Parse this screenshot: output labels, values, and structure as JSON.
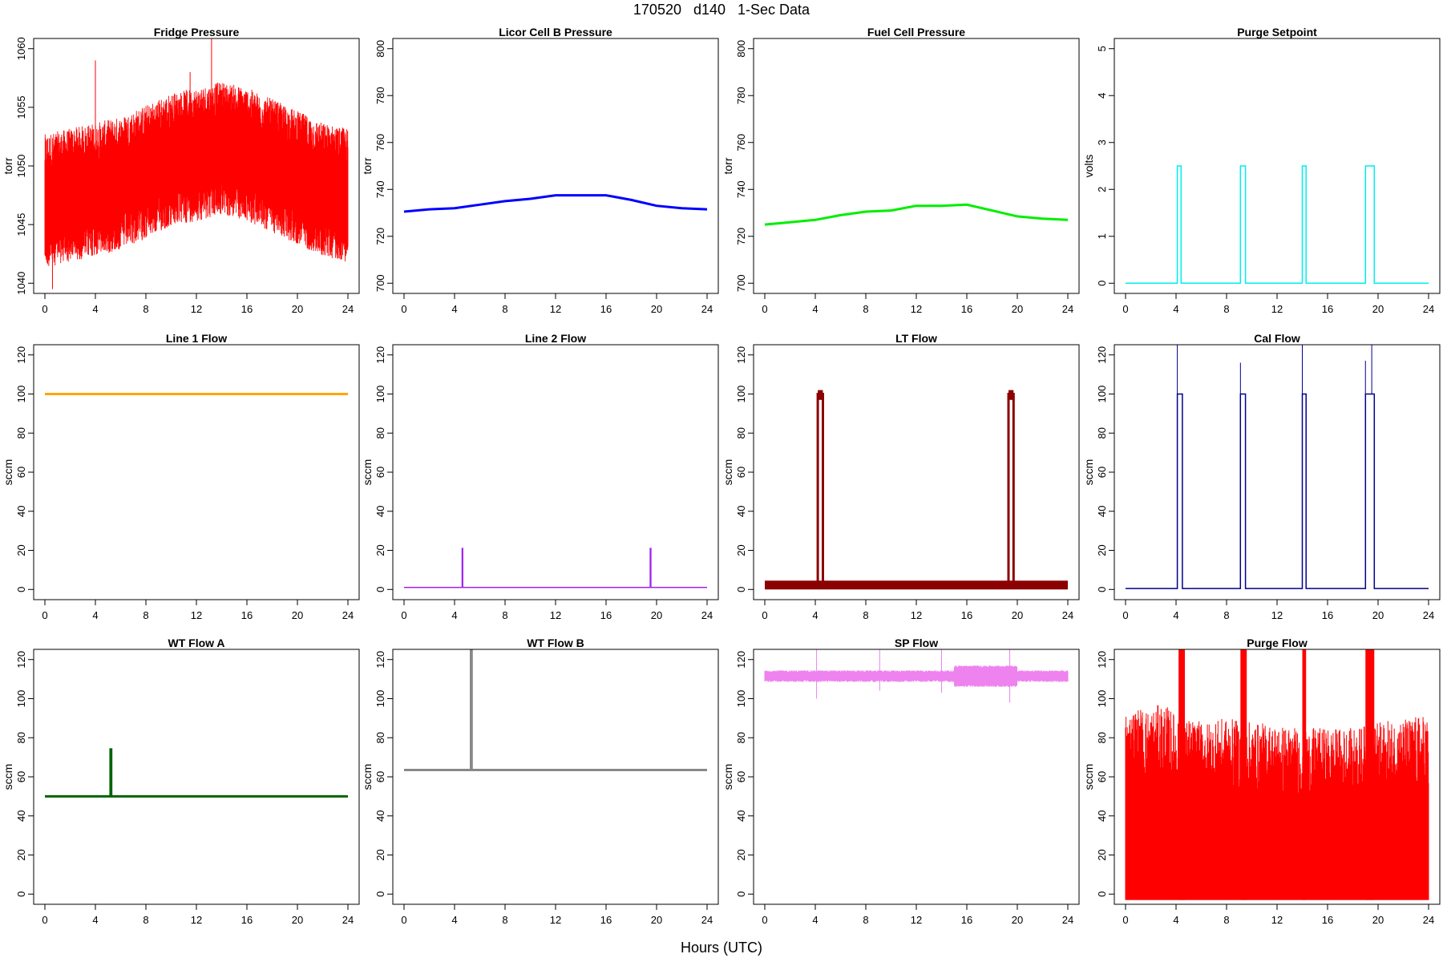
{
  "page": {
    "title": "170520   d140   1-Sec Data",
    "xlabel": "Hours (UTC)"
  },
  "chart_data": [
    {
      "type": "line",
      "title": "Fridge Pressure",
      "ylabel": "torr",
      "color": "#ff0000",
      "xlim": [
        0,
        24
      ],
      "ylim": [
        1040,
        1060
      ],
      "xticks": [
        0,
        4,
        8,
        12,
        16,
        20,
        24
      ],
      "yticks": [
        1040,
        1045,
        1050,
        1055,
        1060
      ],
      "series": [
        {
          "x": [
            0,
            2,
            4,
            6,
            8,
            10,
            12,
            14,
            16,
            18,
            20,
            22,
            24
          ],
          "y": [
            1047,
            1047.5,
            1048,
            1048.5,
            1049.5,
            1050.5,
            1051,
            1051.5,
            1051,
            1050,
            1049,
            1048,
            1047.5
          ]
        }
      ],
      "spikes": [
        [
          4.0,
          1059
        ],
        [
          13.2,
          1061
        ],
        [
          11.5,
          1058
        ],
        [
          0.6,
          1039.5
        ]
      ]
    },
    {
      "type": "line",
      "title": "Licor Cell B Pressure",
      "ylabel": "torr",
      "color": "#0000ff",
      "xlim": [
        0,
        24
      ],
      "ylim": [
        700,
        800
      ],
      "xticks": [
        0,
        4,
        8,
        12,
        16,
        20,
        24
      ],
      "yticks": [
        700,
        720,
        740,
        760,
        780,
        800
      ],
      "series": [
        {
          "x": [
            0,
            2,
            4,
            6,
            8,
            10,
            12,
            14,
            16,
            18,
            20,
            22,
            24
          ],
          "y": [
            730.5,
            731.5,
            732,
            733.5,
            735,
            736,
            737.5,
            737.5,
            737.5,
            735.5,
            733,
            732,
            731.5
          ]
        }
      ]
    },
    {
      "type": "line",
      "title": "Fuel Cell Pressure",
      "ylabel": "torr",
      "color": "#00ee00",
      "xlim": [
        0,
        24
      ],
      "ylim": [
        700,
        800
      ],
      "xticks": [
        0,
        4,
        8,
        12,
        16,
        20,
        24
      ],
      "yticks": [
        700,
        720,
        740,
        760,
        780,
        800
      ],
      "series": [
        {
          "x": [
            0,
            2,
            4,
            6,
            8,
            10,
            12,
            14,
            16,
            18,
            20,
            22,
            24
          ],
          "y": [
            725,
            726,
            727,
            729,
            730.5,
            731,
            733,
            733,
            733.5,
            731,
            728.5,
            727.5,
            727
          ]
        }
      ]
    },
    {
      "type": "line",
      "title": "Purge Setpoint",
      "ylabel": "volts",
      "color": "#00eeee",
      "xlim": [
        0,
        24
      ],
      "ylim": [
        0,
        5
      ],
      "xticks": [
        0,
        4,
        8,
        12,
        16,
        20,
        24
      ],
      "yticks": [
        0,
        1,
        2,
        3,
        4,
        5
      ],
      "series": [
        {
          "x": [
            0,
            4.1,
            4.1,
            4.4,
            4.4,
            9.1,
            9.1,
            9.5,
            9.5,
            14.0,
            14.0,
            14.3,
            14.3,
            19.0,
            19.0,
            19.7,
            19.7,
            24
          ],
          "y": [
            0,
            0,
            2.5,
            2.5,
            0,
            0,
            2.5,
            2.5,
            0,
            0,
            2.5,
            2.5,
            0,
            0,
            2.5,
            2.5,
            0,
            0
          ]
        }
      ]
    },
    {
      "type": "line",
      "title": "Line 1 Flow",
      "ylabel": "sccm",
      "color": "#ffa500",
      "xlim": [
        0,
        24
      ],
      "ylim": [
        0,
        120
      ],
      "xticks": [
        0,
        4,
        8,
        12,
        16,
        20,
        24
      ],
      "yticks": [
        0,
        20,
        40,
        60,
        80,
        100,
        120
      ],
      "series": [
        {
          "x": [
            0,
            4,
            8,
            12,
            16,
            20,
            24
          ],
          "y": [
            100,
            100,
            100,
            100,
            100,
            100,
            100
          ]
        }
      ]
    },
    {
      "type": "line",
      "title": "Line 2 Flow",
      "ylabel": "sccm",
      "color": "#a020f0",
      "xlim": [
        0,
        24
      ],
      "ylim": [
        0,
        120
      ],
      "xticks": [
        0,
        4,
        8,
        12,
        16,
        20,
        24
      ],
      "yticks": [
        0,
        20,
        40,
        60,
        80,
        100,
        120
      ],
      "series": [
        {
          "x": [
            0,
            4.6,
            4.6,
            4.65,
            4.65,
            19.5,
            19.5,
            19.55,
            19.55,
            24
          ],
          "y": [
            1,
            1,
            21,
            21,
            1,
            1,
            21,
            21,
            1,
            1
          ]
        }
      ]
    },
    {
      "type": "line",
      "title": "LT Flow",
      "ylabel": "sccm",
      "color": "#8b0000",
      "xlim": [
        0,
        24
      ],
      "ylim": [
        0,
        120
      ],
      "xticks": [
        0,
        4,
        8,
        12,
        16,
        20,
        24
      ],
      "yticks": [
        0,
        20,
        40,
        60,
        80,
        100,
        120
      ],
      "series": [
        {
          "x": [
            0,
            4.2,
            4.2,
            4.6,
            4.6,
            19.3,
            19.3,
            19.7,
            19.7,
            24
          ],
          "y": [
            2,
            2,
            100,
            100,
            2,
            2,
            100,
            100,
            2,
            2
          ]
        }
      ]
    },
    {
      "type": "line",
      "title": "Cal Flow",
      "ylabel": "sccm",
      "color": "#00008b",
      "xlim": [
        0,
        24
      ],
      "ylim": [
        0,
        120
      ],
      "xticks": [
        0,
        4,
        8,
        12,
        16,
        20,
        24
      ],
      "yticks": [
        0,
        20,
        40,
        60,
        80,
        100,
        120
      ],
      "series": [
        {
          "x": [
            0,
            4.1,
            4.1,
            4.5,
            4.5,
            9.1,
            9.1,
            9.5,
            9.5,
            14.0,
            14.0,
            14.3,
            14.3,
            19.0,
            19.0,
            19.7,
            19.7,
            24
          ],
          "y": [
            0.5,
            0.5,
            100,
            100,
            0.5,
            0.5,
            100,
            100,
            0.5,
            0.5,
            100,
            100,
            0.5,
            0.5,
            100,
            100,
            0.5,
            0.5
          ]
        }
      ],
      "spikes": [
        [
          4.1,
          129
        ],
        [
          9.1,
          116
        ],
        [
          14.0,
          128
        ],
        [
          19.0,
          117
        ],
        [
          19.5,
          130
        ]
      ]
    },
    {
      "type": "line",
      "title": "WT Flow A",
      "ylabel": "sccm",
      "color": "#006400",
      "xlim": [
        0,
        24
      ],
      "ylim": [
        0,
        120
      ],
      "xticks": [
        0,
        4,
        8,
        12,
        16,
        20,
        24
      ],
      "yticks": [
        0,
        20,
        40,
        60,
        80,
        100,
        120
      ],
      "series": [
        {
          "x": [
            0,
            5.2,
            5.2,
            5.25,
            5.25,
            24
          ],
          "y": [
            50,
            50,
            74,
            74,
            50,
            50
          ]
        }
      ]
    },
    {
      "type": "line",
      "title": "WT Flow B",
      "ylabel": "sccm",
      "color": "#888888",
      "xlim": [
        0,
        24
      ],
      "ylim": [
        0,
        120
      ],
      "xticks": [
        0,
        4,
        8,
        12,
        16,
        20,
        24
      ],
      "yticks": [
        0,
        20,
        40,
        60,
        80,
        100,
        120
      ],
      "series": [
        {
          "x": [
            0,
            5.3,
            5.3,
            5.35,
            5.35,
            24
          ],
          "y": [
            63.5,
            63.5,
            130,
            130,
            63.5,
            63.5
          ]
        }
      ]
    },
    {
      "type": "line",
      "title": "SP Flow",
      "ylabel": "sccm",
      "color": "#ee82ee",
      "xlim": [
        0,
        24
      ],
      "ylim": [
        0,
        120
      ],
      "xticks": [
        0,
        4,
        8,
        12,
        16,
        20,
        24
      ],
      "yticks": [
        0,
        20,
        40,
        60,
        80,
        100,
        120
      ],
      "series": [
        {
          "x": [
            0,
            2,
            4,
            6,
            8,
            10,
            12,
            14,
            16,
            18,
            20,
            22,
            24
          ],
          "y": [
            111,
            112,
            111,
            111,
            111,
            111,
            111,
            111,
            111.5,
            112,
            111,
            112,
            111.5
          ]
        }
      ]
    },
    {
      "type": "line",
      "title": "Purge Flow",
      "ylabel": "sccm",
      "color": "#ff0000",
      "xlim": [
        0,
        24
      ],
      "ylim": [
        0,
        120
      ],
      "xticks": [
        0,
        4,
        8,
        12,
        16,
        20,
        24
      ],
      "yticks": [
        0,
        20,
        40,
        60,
        80,
        100,
        120
      ],
      "series": [
        {
          "x": [
            0,
            4,
            8,
            12,
            16,
            20,
            24
          ],
          "y": [
            -3,
            -3,
            -3,
            -3,
            -3,
            -3,
            -3
          ]
        }
      ],
      "noise_max": [
        0,
        0.5,
        1,
        2,
        3,
        4,
        5,
        6,
        8,
        10,
        12,
        14,
        16,
        18,
        20,
        22,
        24
      ],
      "noise_top": [
        95,
        95,
        96,
        95,
        98,
        92,
        90,
        88,
        90,
        88,
        87,
        85,
        85,
        85,
        88,
        90,
        92
      ],
      "bursts": [
        [
          4.2,
          4.7
        ],
        [
          9.1,
          9.6
        ],
        [
          14.0,
          14.3
        ],
        [
          19.0,
          19.7
        ]
      ]
    }
  ]
}
